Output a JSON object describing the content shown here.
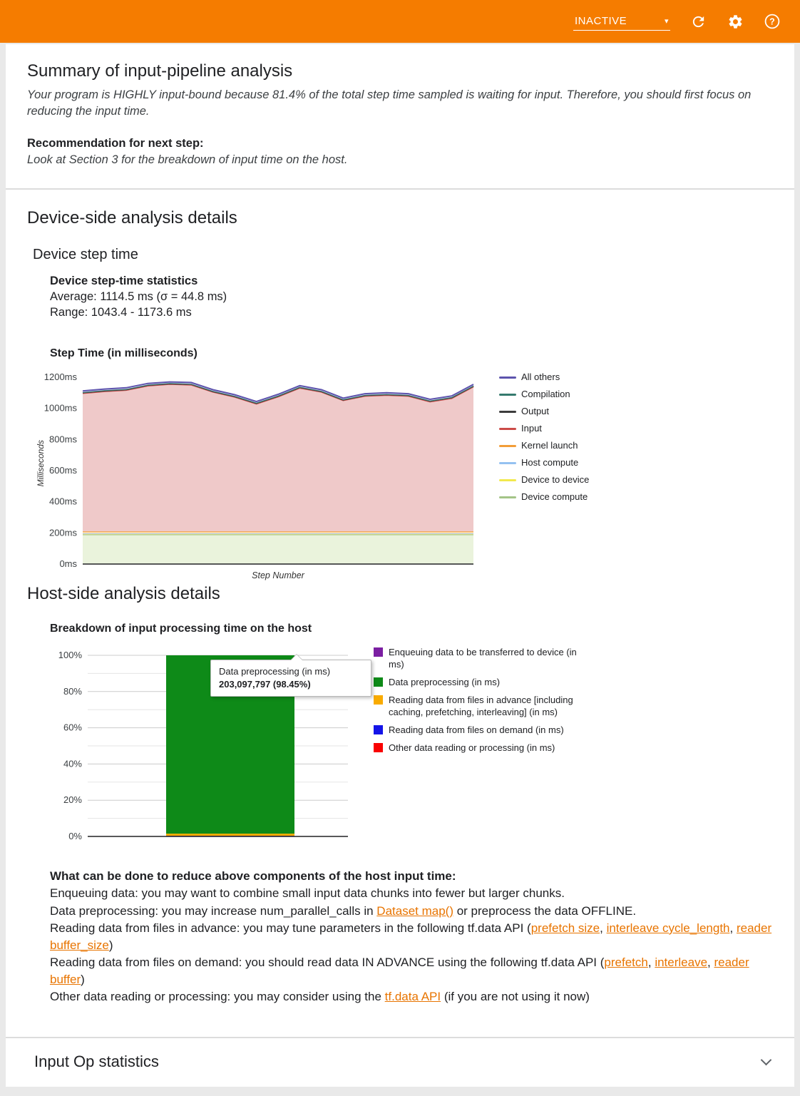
{
  "header": {
    "status_label": "INACTIVE"
  },
  "summary": {
    "title": "Summary of input-pipeline analysis",
    "body": "Your program is HIGHLY input-bound because 81.4% of the total step time sampled is waiting for input. Therefore, you should first focus on reducing the input time.",
    "recommendation_label": "Recommendation for next step:",
    "recommendation_body": "Look at Section 3 for the breakdown of input time on the host."
  },
  "device_section": {
    "title": "Device-side analysis details",
    "subtitle": "Device step time",
    "stats_title": "Device step-time statistics",
    "stats_average": "Average: 1114.5 ms (σ = 44.8 ms)",
    "stats_range": "Range: 1043.4 - 1173.6 ms"
  },
  "host_section": {
    "title": "Host-side analysis details",
    "advice_title": "What can be done to reduce above components of the host input time:",
    "advice_lines": [
      [
        {
          "t": "Enqueuing data: you may want to combine small input data chunks into fewer but larger chunks."
        }
      ],
      [
        {
          "t": "Data preprocessing: you may increase num_parallel_calls in "
        },
        {
          "t": "Dataset map()",
          "link": true
        },
        {
          "t": " or preprocess the data OFFLINE."
        }
      ],
      [
        {
          "t": "Reading data from files in advance: you may tune parameters in the following tf.data API ("
        },
        {
          "t": "prefetch size",
          "link": true
        },
        {
          "t": ", "
        },
        {
          "t": "interleave cycle_length",
          "link": true
        },
        {
          "t": ", "
        },
        {
          "t": "reader buffer_size",
          "link": true
        },
        {
          "t": ")"
        }
      ],
      [
        {
          "t": "Reading data from files on demand: you should read data IN ADVANCE using the following tf.data API ("
        },
        {
          "t": "prefetch",
          "link": true
        },
        {
          "t": ", "
        },
        {
          "t": "interleave",
          "link": true
        },
        {
          "t": ", "
        },
        {
          "t": "reader buffer",
          "link": true
        },
        {
          "t": ")"
        }
      ],
      [
        {
          "t": "Other data reading or processing: you may consider using the "
        },
        {
          "t": "tf.data API",
          "link": true
        },
        {
          "t": " (if you are not using it now)"
        }
      ]
    ]
  },
  "input_op_section": {
    "title": "Input Op statistics"
  },
  "chart_data": [
    {
      "type": "area",
      "title": "Step Time (in milliseconds)",
      "xlabel": "Step Number",
      "ylabel": "Milliseconds",
      "ylim": [
        0,
        1200
      ],
      "ytick_labels": [
        "0ms",
        "200ms",
        "400ms",
        "600ms",
        "800ms",
        "1000ms",
        "1200ms"
      ],
      "series_bottom_to_top": [
        {
          "name": "Device compute",
          "line": "#a3c487",
          "fill": "#eaf3dc",
          "value": 190
        },
        {
          "name": "Device to device",
          "line": "#f2e94e",
          "fill": "#fbf7c9",
          "value": 3
        },
        {
          "name": "Host compute",
          "line": "#94c1f1",
          "fill": "#dbe9fb",
          "value": 3
        },
        {
          "name": "Kernel launch",
          "line": "#f29d38",
          "fill": "#fbe4bc",
          "value": 14
        },
        {
          "name": "Input",
          "line": "#cc4b48",
          "fill": "#efc9c9",
          "values": [
            887,
            899,
            907,
            935,
            945,
            941,
            895,
            863,
            819,
            865,
            921,
            895,
            841,
            869,
            875,
            869,
            833,
            855,
            929
          ]
        },
        {
          "name": "Output",
          "line": "#3c3c3c",
          "fill": "#d6d6d6",
          "value": 4
        },
        {
          "name": "Compilation",
          "line": "#357a6e",
          "fill": "#cde5df",
          "value": 3
        },
        {
          "name": "All others",
          "line": "#5d54ad",
          "fill": "#d7d1ee",
          "value": 8
        }
      ],
      "legend_top_to_bottom": [
        "All others",
        "Compilation",
        "Output",
        "Input",
        "Kernel launch",
        "Host compute",
        "Device to device",
        "Device compute"
      ]
    },
    {
      "type": "stacked_bar_percent",
      "title": "Breakdown of input processing time on the host",
      "ylim": [
        0,
        100
      ],
      "ytick_labels": [
        "0%",
        "20%",
        "40%",
        "60%",
        "80%",
        "100%"
      ],
      "segments_bottom_to_top": [
        {
          "name": "Other data reading or processing (in ms)",
          "color": "#f90101",
          "pct": 0.2
        },
        {
          "name": "Reading data from files on demand (in ms)",
          "color": "#1414e8",
          "pct": 0.15
        },
        {
          "name": "Reading data from files in advance [including caching, prefetching, interleaving] (in ms)",
          "color": "#f9ab00",
          "pct": 1.2
        },
        {
          "name": "Data preprocessing (in ms)",
          "color": "#0e8a18",
          "pct": 98.45
        },
        {
          "name": "Enqueuing data to be transferred to device (in ms)",
          "color": "#7b1fa2",
          "pct": 0.0
        }
      ],
      "legend_top_to_bottom": [
        "Enqueuing data to be transferred to device (in ms)",
        "Data preprocessing (in ms)",
        "Reading data from files in advance [including caching, prefetching, interleaving] (in ms)",
        "Reading data from files on demand (in ms)",
        "Other data reading or processing (in ms)"
      ],
      "tooltip": {
        "title": "Data preprocessing (in ms)",
        "value": "203,097,797 (98.45%)"
      }
    }
  ]
}
